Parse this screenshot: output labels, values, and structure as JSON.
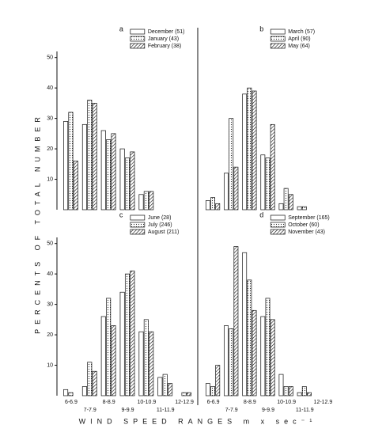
{
  "chart_data": [
    {
      "type": "bar",
      "panel": "a",
      "ylim": [
        0,
        52
      ],
      "yticks": [
        10,
        20,
        30,
        40,
        50
      ],
      "series": [
        {
          "name": "December (51)",
          "pattern": "plain",
          "values": [
            29,
            28,
            26,
            20,
            5,
            0,
            0
          ]
        },
        {
          "name": "January (43)",
          "pattern": "dotted",
          "values": [
            32,
            36,
            23,
            17,
            6,
            0,
            0
          ]
        },
        {
          "name": "February (38)",
          "pattern": "hatched",
          "values": [
            16,
            35,
            25,
            19,
            6,
            0,
            0
          ]
        }
      ]
    },
    {
      "type": "bar",
      "panel": "b",
      "ylim": [
        0,
        52
      ],
      "series": [
        {
          "name": "March (57)",
          "pattern": "plain",
          "values": [
            3,
            12,
            38,
            18,
            2,
            1,
            0
          ]
        },
        {
          "name": "April (90)",
          "pattern": "dotted",
          "values": [
            4,
            30,
            40,
            17,
            7,
            1,
            0
          ]
        },
        {
          "name": "May (64)",
          "pattern": "hatched",
          "values": [
            2,
            14,
            39,
            28,
            5,
            0,
            0
          ]
        }
      ]
    },
    {
      "type": "bar",
      "panel": "c",
      "ylim": [
        0,
        52
      ],
      "yticks": [
        10,
        20,
        30,
        40,
        50
      ],
      "categories": [
        "6-6.9",
        "7-7.9",
        "8-8.9",
        "9-9.9",
        "10-10.9",
        "11-11.9",
        "12-12.9"
      ],
      "series": [
        {
          "name": "June (28)",
          "pattern": "plain",
          "values": [
            2,
            3,
            26,
            34,
            21,
            6,
            0
          ]
        },
        {
          "name": "July (246)",
          "pattern": "dotted",
          "values": [
            1,
            11,
            32,
            40,
            25,
            7,
            1
          ]
        },
        {
          "name": "August (211)",
          "pattern": "hatched",
          "values": [
            0,
            8,
            23,
            41,
            21,
            4,
            1
          ]
        }
      ]
    },
    {
      "type": "bar",
      "panel": "d",
      "ylim": [
        0,
        52
      ],
      "categories": [
        "6-6.9",
        "7-7.9",
        "8-8.9",
        "9-9.9",
        "10-10.9",
        "11-11.9",
        "12-12.9"
      ],
      "series": [
        {
          "name": "September (165)",
          "pattern": "plain",
          "values": [
            4,
            23,
            47,
            26,
            7,
            1,
            0
          ]
        },
        {
          "name": "October (60)",
          "pattern": "dotted",
          "values": [
            3,
            22,
            38,
            32,
            3,
            3,
            0
          ]
        },
        {
          "name": "November (43)",
          "pattern": "hatched",
          "values": [
            10,
            49,
            28,
            25,
            3,
            1,
            0
          ]
        }
      ]
    }
  ],
  "y_label": "PERCENTS OF TOTAL NUMBER",
  "x_label": "WIND SPEED RANGES m x sec⁻¹"
}
